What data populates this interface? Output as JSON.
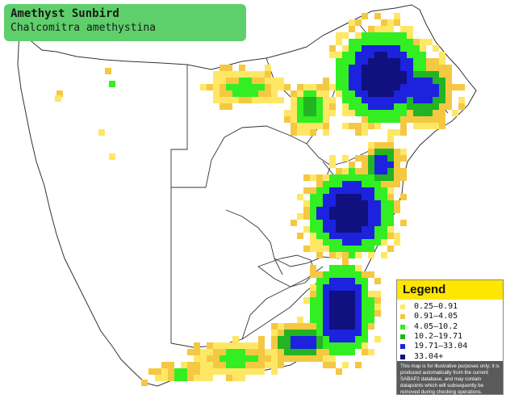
{
  "title": {
    "common_name": "Amethyst Sunbird",
    "scientific_name": "Chalcomitra amethystina"
  },
  "legend": {
    "heading": "Legend",
    "items": [
      {
        "label": "0.25–0.91",
        "color": "#ffe766"
      },
      {
        "label": "0.91–4.05",
        "color": "#f5c842"
      },
      {
        "label": "4.05–10.2",
        "color": "#33ee22"
      },
      {
        "label": "10.2–19.71",
        "color": "#22b422"
      },
      {
        "label": "19.71–33.04",
        "color": "#1c22dd"
      },
      {
        "label": "33.04+",
        "color": "#101080"
      }
    ],
    "note": "This map is for illustrative purposes only; it is produced automatically from the current SABAP2 database, and may contain datapoints which will subsequently be removed during checking operations."
  },
  "map": {
    "region": "Southern Africa",
    "colors": {
      "land": "#ffffff",
      "borders": "#333333",
      "cell_0": "#ffe766",
      "cell_1": "#f5c842",
      "cell_2": "#33ee22",
      "cell_3": "#22b422",
      "cell_4": "#1c22dd",
      "cell_5": "#101080"
    }
  }
}
